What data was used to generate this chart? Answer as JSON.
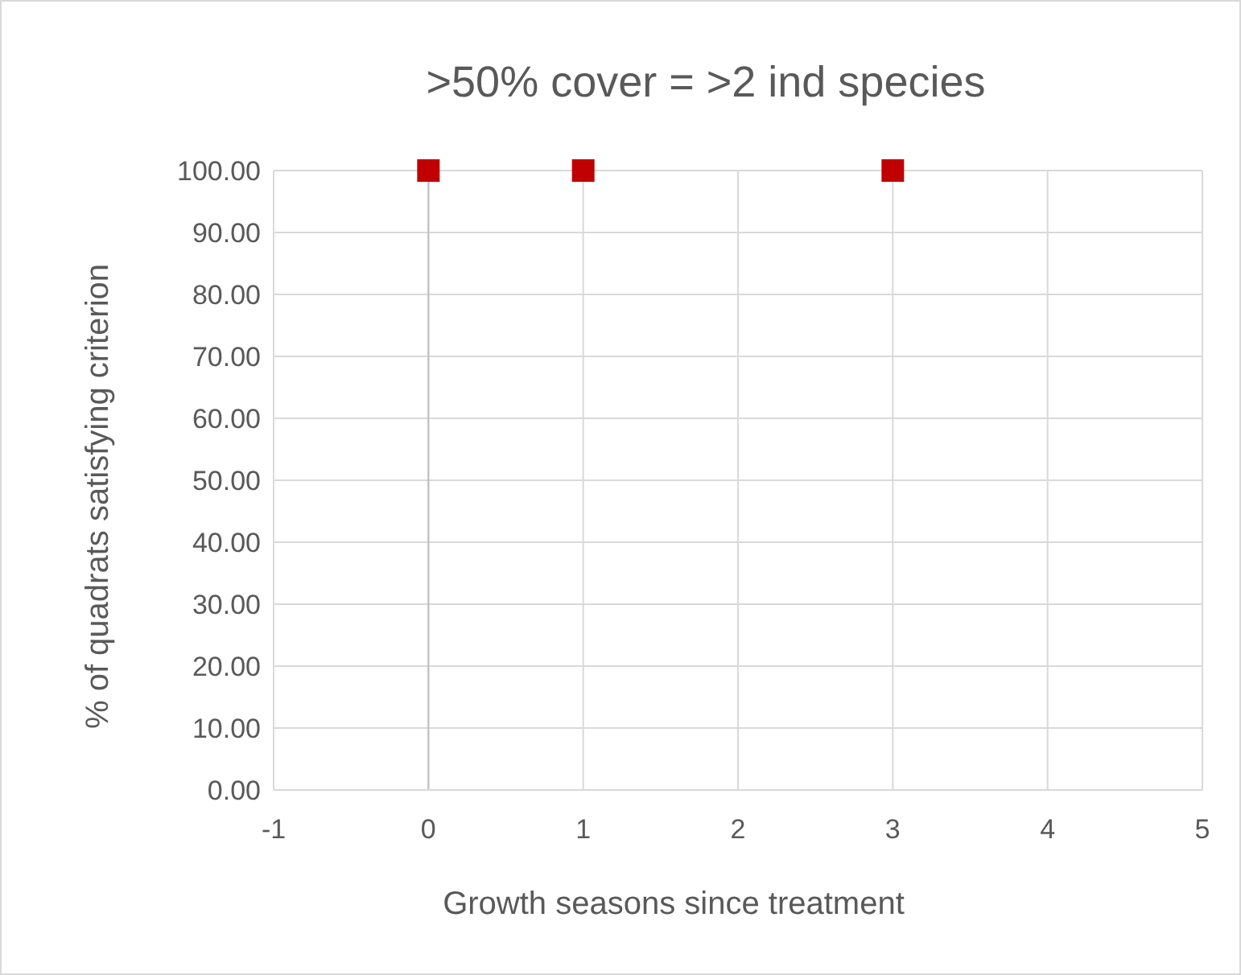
{
  "chart_data": {
    "type": "scatter",
    "title": ">50% cover = >2 ind species",
    "xlabel": "Growth seasons since treatment",
    "ylabel": "% of quadrats satisfying criterion",
    "x": [
      0,
      1,
      3
    ],
    "series": [
      {
        "color": "#c00000",
        "values": [
          100,
          100,
          100
        ]
      }
    ],
    "xlim": [
      -1,
      5
    ],
    "xticks": [
      -1,
      0,
      1,
      2,
      3,
      4,
      5
    ],
    "ylim": [
      0,
      100
    ],
    "yticks": [
      {
        "value": 0,
        "label": "0.00"
      },
      {
        "value": 10,
        "label": "10.00"
      },
      {
        "value": 20,
        "label": "20.00"
      },
      {
        "value": 30,
        "label": "30.00"
      },
      {
        "value": 40,
        "label": "40.00"
      },
      {
        "value": 50,
        "label": "50.00"
      },
      {
        "value": 60,
        "label": "60.00"
      },
      {
        "value": 70,
        "label": "70.00"
      },
      {
        "value": 80,
        "label": "80.00"
      },
      {
        "value": 90,
        "label": "90.00"
      },
      {
        "value": 100,
        "label": "100.00"
      }
    ],
    "grid": true,
    "marker": "square"
  }
}
